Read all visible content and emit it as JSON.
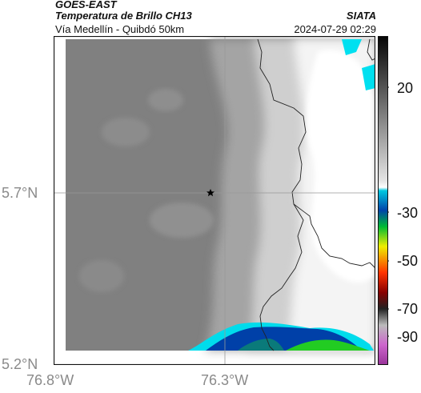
{
  "header": {
    "source": "GOES-EAST",
    "product": "Temperatura de Brillo CH13",
    "org": "SIATA",
    "route": "Vía Medellín - Quibdó 50km",
    "datetime": "2024-07-29 02:29"
  },
  "axes": {
    "lat_labels": [
      "5.7°N",
      "5.2°N"
    ],
    "lon_labels": [
      "76.8°W",
      "76.3°W"
    ]
  },
  "colorbar": {
    "ticks": [
      "20",
      "-30",
      "-50",
      "-70",
      "-90"
    ],
    "colors": [
      "#111111",
      "#777777",
      "#cccccc",
      "#ffffff",
      "#00c8e0",
      "#0044aa",
      "#00bb33",
      "#eeee00",
      "#ff3300",
      "#880000",
      "#cc66cc"
    ]
  },
  "map": {
    "marker": "star-marker",
    "colors": {
      "cold_cloud": "#ffffff",
      "mid_cloud": "#a9a9a9",
      "warm_surface": "#7f7f7f",
      "cyan": "#00e0f0",
      "blue": "#0044aa",
      "green": "#22cc22"
    }
  }
}
